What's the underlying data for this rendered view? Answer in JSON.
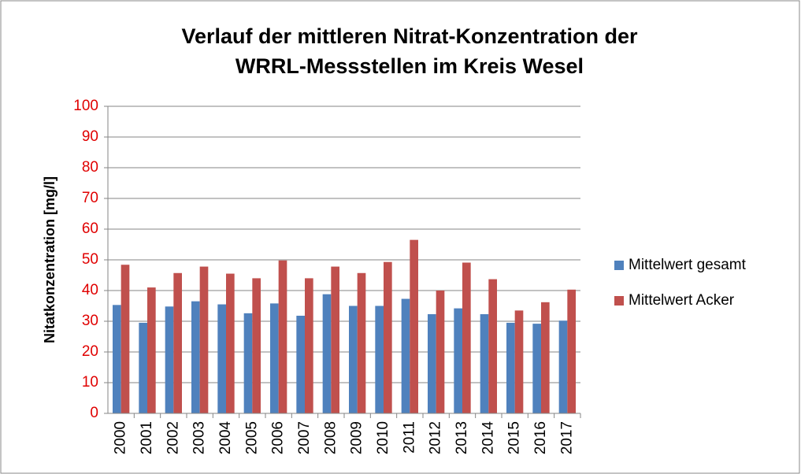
{
  "chart_data": {
    "type": "bar",
    "title": [
      "Verlauf der mittleren Nitrat-Konzentration der",
      "WRRL-Messstellen im Kreis Wesel"
    ],
    "ylabel": "Nitatkonzentration [mg/l]",
    "categories": [
      "2000",
      "2001",
      "2002",
      "2003",
      "2004",
      "2005",
      "2006",
      "2007",
      "2008",
      "2009",
      "2010",
      "2011",
      "2012",
      "2013",
      "2014",
      "2015",
      "2016",
      "2017"
    ],
    "series": [
      {
        "name": "Mittelwert gesamt",
        "color": "#4f81bd",
        "values": [
          35.3,
          29.5,
          34.8,
          36.5,
          35.5,
          32.6,
          35.8,
          31.8,
          38.8,
          35.0,
          35.0,
          37.3,
          32.3,
          34.2,
          32.3,
          29.5,
          29.2,
          30.2
        ]
      },
      {
        "name": "Mittelwert Acker",
        "color": "#c0504d",
        "values": [
          48.4,
          41.0,
          45.7,
          47.8,
          45.5,
          44.0,
          49.8,
          44.0,
          47.8,
          45.7,
          49.3,
          56.5,
          40.0,
          49.1,
          43.7,
          33.5,
          36.2,
          40.3
        ]
      }
    ],
    "ylim": [
      0,
      100
    ],
    "yticks": [
      0,
      10,
      20,
      30,
      40,
      50,
      60,
      70,
      80,
      90,
      100
    ],
    "ytick_color": "#e00000",
    "grid": true,
    "legend": "right"
  }
}
